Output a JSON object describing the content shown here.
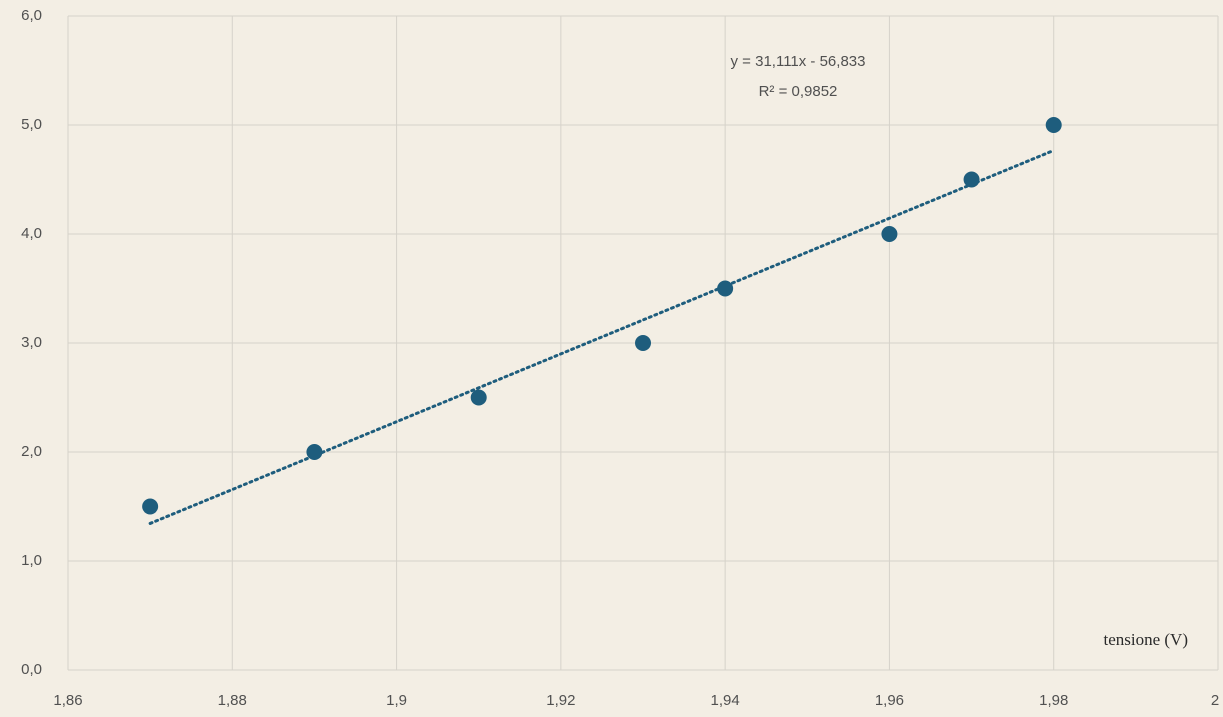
{
  "chart_data": {
    "type": "scatter",
    "title": "",
    "xlabel": "tensione (V)",
    "ylabel": "",
    "xlim": [
      1.86,
      2.0
    ],
    "ylim": [
      0,
      6
    ],
    "x_ticks": [
      "1,86",
      "1,88",
      "1,9",
      "1,92",
      "1,94",
      "1,96",
      "1,98",
      "2"
    ],
    "y_ticks": [
      "0,0",
      "1,0",
      "2,0",
      "3,0",
      "4,0",
      "5,0",
      "6,0"
    ],
    "grid": true,
    "series": [
      {
        "x": [
          1.87,
          1.89,
          1.91,
          1.93,
          1.94,
          1.96,
          1.97,
          1.98
        ],
        "y": [
          1.5,
          2.0,
          2.5,
          3.0,
          3.5,
          4.0,
          4.5,
          5.0
        ],
        "color": "#1e5d7d"
      }
    ],
    "trendline": {
      "type": "linear",
      "slope": 31.111,
      "intercept": -56.833,
      "x_range": [
        1.87,
        1.98
      ],
      "style": "dotted",
      "equation_label": "y = 31,111x - 56,833",
      "r2_label": "R² = 0,9852"
    }
  }
}
